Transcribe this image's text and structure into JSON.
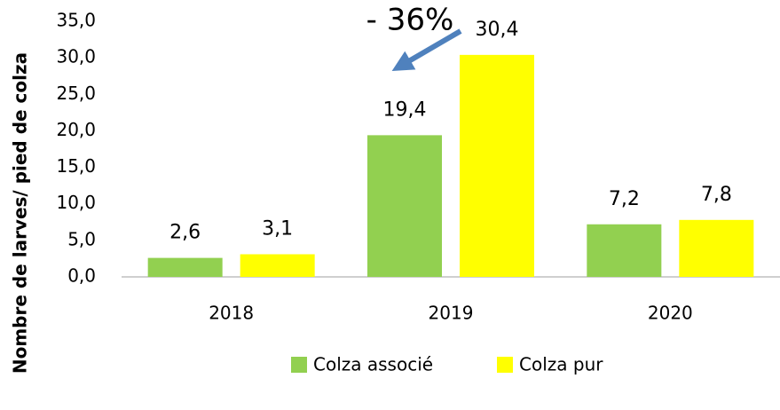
{
  "chart_data": {
    "type": "bar",
    "y_label": "Nombre de larves/ pied de colza",
    "annotation": "- 36%",
    "categories": [
      "2018",
      "2019",
      "2020"
    ],
    "series": [
      {
        "name": "Colza associé",
        "color": "#92d050",
        "values": [
          2.6,
          19.4,
          7.2
        ],
        "value_labels": [
          "2,6",
          "19,4",
          "7,2"
        ]
      },
      {
        "name": "Colza pur",
        "color": "#ffff00",
        "values": [
          3.1,
          30.4,
          7.8
        ],
        "value_labels": [
          "3,1",
          "30,4",
          "7,8"
        ]
      }
    ],
    "ylim": [
      0,
      35
    ],
    "yticks": [
      {
        "value": 0,
        "label": "0,0"
      },
      {
        "value": 5,
        "label": "5,0"
      },
      {
        "value": 10,
        "label": "10,0"
      },
      {
        "value": 15,
        "label": "15,0"
      },
      {
        "value": 20,
        "label": "20,0"
      },
      {
        "value": 25,
        "label": "25,0"
      },
      {
        "value": 30,
        "label": "30,0"
      },
      {
        "value": 35,
        "label": "35,0"
      }
    ],
    "grid": false,
    "legend": "bottom"
  }
}
